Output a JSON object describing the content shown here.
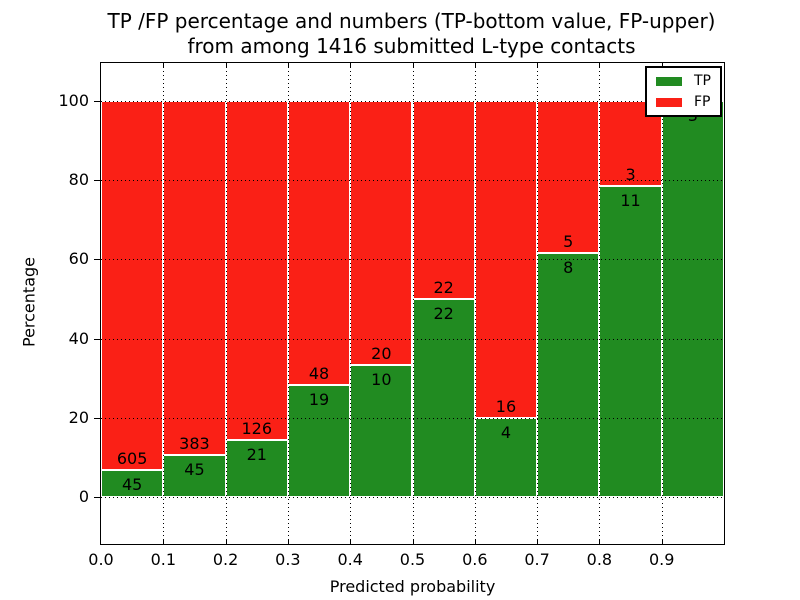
{
  "title": {
    "line1": "TP /FP percentage and numbers (TP-bottom value, FP-upper)",
    "line2": "from among 1416 submitted L-type contacts"
  },
  "axes": {
    "xlabel": "Predicted probability",
    "ylabel": "Percentage",
    "xtick_labels": [
      "0.0",
      "0.1",
      "0.2",
      "0.3",
      "0.4",
      "0.5",
      "0.6",
      "0.7",
      "0.8",
      "0.9"
    ],
    "ytick_labels": [
      "0",
      "20",
      "40",
      "60",
      "80",
      "100"
    ]
  },
  "legend": {
    "items": [
      {
        "label": "TP",
        "color": "#218b21"
      },
      {
        "label": "FP",
        "color": "#fa2016"
      }
    ]
  },
  "chart_data": {
    "type": "bar",
    "stacked": true,
    "normalized_to_percent": true,
    "title": "TP /FP percentage and numbers (TP-bottom value, FP-upper) from among 1416 submitted L-type contacts",
    "xlabel": "Predicted probability",
    "ylabel": "Percentage",
    "bin_start": [
      0.0,
      0.1,
      0.2,
      0.3,
      0.4,
      0.5,
      0.6,
      0.7,
      0.8,
      0.9
    ],
    "bin_width": 0.1,
    "series": [
      {
        "name": "TP",
        "color": "#218b21",
        "counts": [
          45,
          45,
          21,
          19,
          10,
          22,
          4,
          8,
          11,
          3
        ]
      },
      {
        "name": "FP",
        "color": "#fa2016",
        "counts": [
          605,
          383,
          126,
          48,
          20,
          22,
          16,
          5,
          3,
          0
        ]
      }
    ],
    "tp_percent": [
      6.92,
      10.51,
      14.29,
      28.36,
      33.33,
      50.0,
      20.0,
      61.54,
      78.57,
      100.0
    ],
    "yticks": [
      0,
      20,
      40,
      60,
      80,
      100
    ],
    "xticks": [
      0.0,
      0.1,
      0.2,
      0.3,
      0.4,
      0.5,
      0.6,
      0.7,
      0.8,
      0.9
    ],
    "ylim": [
      -12,
      110
    ],
    "xlim": [
      0.0,
      1.0
    ],
    "grid": true,
    "grid_style": "dotted",
    "legend_position": "upper right",
    "total": 1416
  }
}
